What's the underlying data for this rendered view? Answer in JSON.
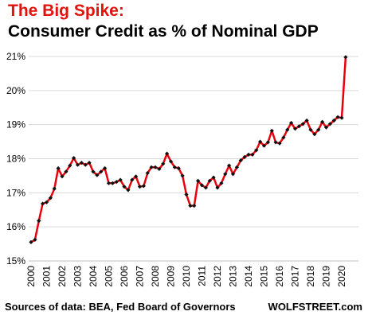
{
  "header": {
    "title": "The Big Spike:",
    "subtitle": "Consumer Credit as % of Nominal GDP"
  },
  "footer": {
    "source": "Sources of data: BEA, Fed Board of Governors",
    "brand": "WOLFSTREET.com"
  },
  "colors": {
    "title": "#e3120b",
    "line": "#e8000b",
    "marker": "#111111",
    "grid": "#d9d9d9"
  },
  "chart_data": {
    "type": "line",
    "title": "Consumer Credit as % of Nominal GDP",
    "xlabel": "",
    "ylabel": "",
    "ylim": [
      15,
      21
    ],
    "yticks": [
      15,
      16,
      17,
      18,
      19,
      20,
      21
    ],
    "ytick_labels": [
      "15%",
      "16%",
      "17%",
      "18%",
      "19%",
      "20%",
      "21%"
    ],
    "xtick_labels": [
      "2000",
      "2001",
      "2002",
      "2003",
      "2004",
      "2005",
      "2006",
      "2007",
      "2008",
      "2009",
      "2010",
      "2011",
      "2012",
      "2013",
      "2014",
      "2015",
      "2016",
      "2017",
      "2018",
      "2019",
      "2020"
    ],
    "grid": "horizontal",
    "marker": "diamond",
    "x": [
      "2000-Q1",
      "2000-Q2",
      "2000-Q3",
      "2000-Q4",
      "2001-Q1",
      "2001-Q2",
      "2001-Q3",
      "2001-Q4",
      "2002-Q1",
      "2002-Q2",
      "2002-Q3",
      "2002-Q4",
      "2003-Q1",
      "2003-Q2",
      "2003-Q3",
      "2003-Q4",
      "2004-Q1",
      "2004-Q2",
      "2004-Q3",
      "2004-Q4",
      "2005-Q1",
      "2005-Q2",
      "2005-Q3",
      "2005-Q4",
      "2006-Q1",
      "2006-Q2",
      "2006-Q3",
      "2006-Q4",
      "2007-Q1",
      "2007-Q2",
      "2007-Q3",
      "2007-Q4",
      "2008-Q1",
      "2008-Q2",
      "2008-Q3",
      "2008-Q4",
      "2009-Q1",
      "2009-Q2",
      "2009-Q3",
      "2009-Q4",
      "2010-Q1",
      "2010-Q2",
      "2010-Q3",
      "2010-Q4",
      "2011-Q1",
      "2011-Q2",
      "2011-Q3",
      "2011-Q4",
      "2012-Q1",
      "2012-Q2",
      "2012-Q3",
      "2012-Q4",
      "2013-Q1",
      "2013-Q2",
      "2013-Q3",
      "2013-Q4",
      "2014-Q1",
      "2014-Q2",
      "2014-Q3",
      "2014-Q4",
      "2015-Q1",
      "2015-Q2",
      "2015-Q3",
      "2015-Q4",
      "2016-Q1",
      "2016-Q2",
      "2016-Q3",
      "2016-Q4",
      "2017-Q1",
      "2017-Q2",
      "2017-Q3",
      "2017-Q4",
      "2018-Q1",
      "2018-Q2",
      "2018-Q3",
      "2018-Q4",
      "2019-Q1",
      "2019-Q2",
      "2019-Q3",
      "2019-Q4",
      "2020-Q1",
      "2020-Q2"
    ],
    "series": [
      {
        "values": [
          15.55,
          15.62,
          16.18,
          16.68,
          16.72,
          16.85,
          17.12,
          17.72,
          17.48,
          17.62,
          17.8,
          18.02,
          17.82,
          17.88,
          17.82,
          17.88,
          17.62,
          17.52,
          17.62,
          17.72,
          17.28,
          17.28,
          17.32,
          17.38,
          17.18,
          17.08,
          17.38,
          17.48,
          17.18,
          17.2,
          17.58,
          17.75,
          17.75,
          17.7,
          17.85,
          18.15,
          17.92,
          17.75,
          17.72,
          17.5,
          16.95,
          16.62,
          16.62,
          17.35,
          17.22,
          17.15,
          17.35,
          17.45,
          17.15,
          17.28,
          17.55,
          17.8,
          17.55,
          17.75,
          17.95,
          18.05,
          18.12,
          18.12,
          18.25,
          18.5,
          18.38,
          18.48,
          18.82,
          18.48,
          18.45,
          18.62,
          18.85,
          19.05,
          18.88,
          18.95,
          19.02,
          19.12,
          18.85,
          18.72,
          18.85,
          19.08,
          18.92,
          19.02,
          19.12,
          19.22,
          19.2,
          20.98
        ]
      }
    ]
  }
}
